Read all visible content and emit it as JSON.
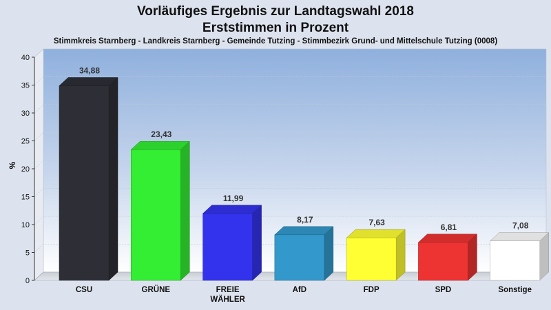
{
  "header": {
    "title_line1": "Vorläufiges Ergebnis zur Landtagswahl 2018",
    "title_line2": "Erststimmen in Prozent",
    "subtitle": "Stimmkreis Starnberg - Landkreis Starnberg - Gemeinde Tutzing - Stimmbezirk Grund- und Mittelschule Tutzing (0008)"
  },
  "chart_data": {
    "type": "bar",
    "title": "Vorläufiges Ergebnis zur Landtagswahl 2018",
    "subtitle": "Erststimmen in Prozent",
    "ylabel": "%",
    "xlabel": "",
    "ylim": [
      0,
      40
    ],
    "yticks": [
      0,
      5,
      10,
      15,
      20,
      25,
      30,
      35,
      40
    ],
    "grid": true,
    "categories": [
      "CSU",
      "GRÜNE",
      "FREIE WÄHLER",
      "AfD",
      "FDP",
      "SPD",
      "Sonstige"
    ],
    "category_lines": [
      [
        "CSU"
      ],
      [
        "GRÜNE"
      ],
      [
        "FREIE",
        "WÄHLER"
      ],
      [
        "AfD"
      ],
      [
        "FDP"
      ],
      [
        "SPD"
      ],
      [
        "Sonstige"
      ]
    ],
    "values": [
      34.88,
      23.43,
      11.99,
      8.17,
      7.63,
      6.81,
      7.08
    ],
    "value_labels": [
      "34,88",
      "23,43",
      "11,99",
      "8,17",
      "7,63",
      "6,81",
      "7,08"
    ],
    "colors": [
      "#2e2f36",
      "#33ee33",
      "#3333ee",
      "#3399cc",
      "#ffff33",
      "#ee3333",
      "#ffffff"
    ]
  }
}
